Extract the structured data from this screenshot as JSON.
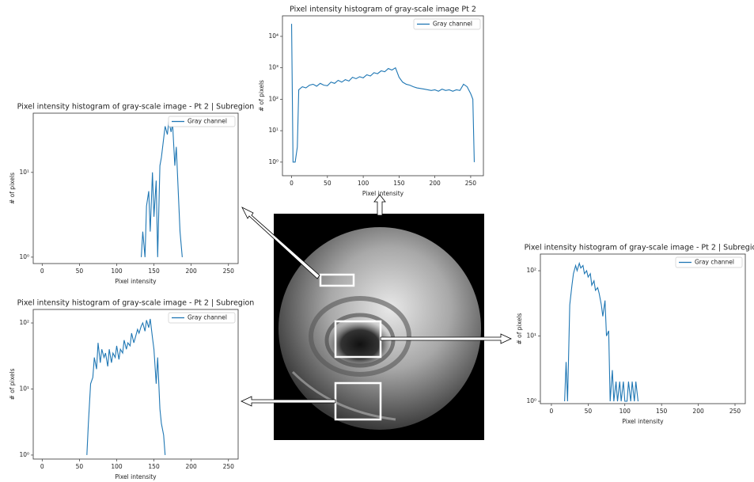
{
  "chart_data": [
    {
      "type": "line",
      "title": "Pixel intensity histogram of gray-scale image Pt 2",
      "xlabel": "Pixel intensity",
      "ylabel": "# of pixels",
      "x": [
        0,
        2,
        5,
        8,
        10,
        15,
        20,
        25,
        30,
        35,
        40,
        45,
        50,
        55,
        60,
        65,
        70,
        75,
        80,
        85,
        90,
        95,
        100,
        105,
        110,
        115,
        120,
        125,
        130,
        135,
        140,
        145,
        150,
        155,
        160,
        165,
        170,
        175,
        180,
        185,
        190,
        195,
        200,
        205,
        210,
        215,
        220,
        225,
        230,
        235,
        240,
        245,
        250,
        253,
        255
      ],
      "series": [
        {
          "name": "Gray channel",
          "color": "#1f77b4",
          "values": [
            25000,
            1,
            1,
            3,
            200,
            250,
            230,
            280,
            300,
            260,
            320,
            280,
            270,
            350,
            320,
            400,
            350,
            420,
            380,
            500,
            450,
            520,
            480,
            600,
            550,
            700,
            650,
            800,
            750,
            950,
            850,
            1000,
            500,
            350,
            300,
            280,
            250,
            230,
            220,
            210,
            200,
            190,
            200,
            180,
            210,
            190,
            200,
            180,
            200,
            190,
            300,
            250,
            150,
            100,
            1
          ]
        }
      ],
      "xlim": [
        -12.75,
        267.75
      ],
      "ylim": [
        0.37,
        45000
      ],
      "yscale": "log",
      "legend": "upper right",
      "xticks": [
        0,
        50,
        100,
        150,
        200,
        250
      ],
      "yticks": [
        {
          "value": 1,
          "label": "10⁰"
        },
        {
          "value": 10,
          "label": "10¹"
        },
        {
          "value": 100,
          "label": "10²"
        },
        {
          "value": 1000,
          "label": "10³"
        },
        {
          "value": 10000,
          "label": "10⁴"
        }
      ]
    },
    {
      "type": "line",
      "title": "Pixel intensity histogram of gray-scale image - Pt 2 | Subregion",
      "xlabel": "Pixel intensity",
      "ylabel": "# of pixels",
      "x": [
        133,
        135,
        138,
        140,
        143,
        145,
        148,
        150,
        153,
        155,
        158,
        160,
        163,
        165,
        168,
        170,
        173,
        175,
        178,
        180,
        183,
        185,
        188
      ],
      "series": [
        {
          "name": "Gray channel",
          "color": "#1f77b4",
          "values": [
            1,
            2,
            1,
            4,
            6,
            2,
            10,
            3,
            8,
            1,
            12,
            15,
            25,
            35,
            28,
            40,
            30,
            38,
            12,
            20,
            5,
            2,
            1
          ]
        }
      ],
      "xlim": [
        -12,
        263
      ],
      "ylim": [
        0.84,
        50
      ],
      "yscale": "log",
      "legend": "upper right",
      "xticks": [
        0,
        50,
        100,
        150,
        200,
        250
      ],
      "yticks": [
        {
          "value": 1,
          "label": "10⁰"
        },
        {
          "value": 10,
          "label": "10¹"
        }
      ]
    },
    {
      "type": "line",
      "title": "Pixel intensity histogram of gray-scale image - Pt 2 | Subregion",
      "xlabel": "Pixel intensity",
      "ylabel": "# of pixels",
      "x": [
        60,
        62,
        65,
        68,
        70,
        73,
        75,
        78,
        80,
        83,
        85,
        88,
        90,
        93,
        95,
        98,
        100,
        103,
        105,
        108,
        110,
        113,
        115,
        118,
        120,
        123,
        125,
        128,
        130,
        133,
        135,
        138,
        140,
        143,
        145,
        148,
        150,
        153,
        155,
        158,
        160,
        163,
        165
      ],
      "series": [
        {
          "name": "Gray channel",
          "color": "#1f77b4",
          "values": [
            1,
            3,
            12,
            15,
            30,
            20,
            50,
            25,
            40,
            30,
            35,
            22,
            40,
            25,
            35,
            30,
            45,
            28,
            40,
            35,
            55,
            40,
            50,
            45,
            70,
            50,
            60,
            80,
            70,
            90,
            100,
            75,
            110,
            85,
            115,
            60,
            40,
            12,
            30,
            5,
            3,
            2,
            1
          ]
        }
      ],
      "xlim": [
        -12,
        263
      ],
      "ylim": [
        0.87,
        160
      ],
      "yscale": "log",
      "legend": "upper right",
      "xticks": [
        0,
        50,
        100,
        150,
        200,
        250
      ],
      "yticks": [
        {
          "value": 1,
          "label": "10⁰"
        },
        {
          "value": 10,
          "label": "10¹"
        },
        {
          "value": 100,
          "label": "10²"
        }
      ]
    },
    {
      "type": "line",
      "title": "Pixel intensity histogram of gray-scale image - Pt 2 | Subregion",
      "xlabel": "Pixel intensity",
      "ylabel": "# of pixels",
      "x": [
        18,
        20,
        22,
        25,
        28,
        30,
        33,
        35,
        38,
        40,
        43,
        45,
        48,
        50,
        53,
        55,
        58,
        60,
        63,
        65,
        68,
        70,
        73,
        75,
        78,
        80,
        83,
        85,
        88,
        90,
        93,
        95,
        98,
        100,
        103,
        105,
        108,
        110,
        113,
        115,
        118
      ],
      "series": [
        {
          "name": "Gray channel",
          "color": "#1f77b4",
          "values": [
            1,
            4,
            1,
            30,
            60,
            90,
            120,
            100,
            130,
            110,
            120,
            90,
            100,
            80,
            90,
            60,
            70,
            50,
            55,
            45,
            30,
            20,
            35,
            10,
            12,
            1,
            3,
            1,
            2,
            1,
            2,
            1,
            2,
            1,
            1,
            2,
            1,
            2,
            1,
            2,
            1
          ]
        }
      ],
      "xlim": [
        -15,
        264
      ],
      "ylim": [
        0.92,
        180
      ],
      "yscale": "log",
      "legend": "upper right",
      "xticks": [
        0,
        50,
        100,
        150,
        200,
        250
      ],
      "yticks": [
        {
          "value": 1,
          "label": "10⁰"
        },
        {
          "value": 10,
          "label": "10¹"
        },
        {
          "value": 100,
          "label": "10²"
        }
      ]
    }
  ]
}
